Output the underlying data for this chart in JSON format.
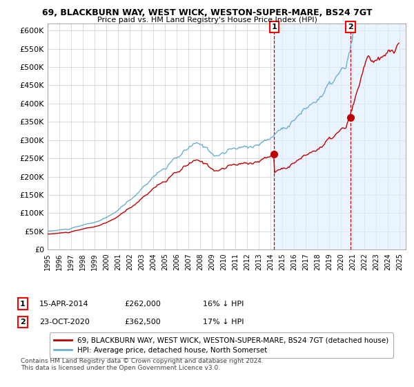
{
  "title1": "69, BLACKBURN WAY, WEST WICK, WESTON-SUPER-MARE, BS24 7GT",
  "title2": "Price paid vs. HM Land Registry's House Price Index (HPI)",
  "yticks": [
    0,
    50000,
    100000,
    150000,
    200000,
    250000,
    300000,
    350000,
    400000,
    450000,
    500000,
    550000,
    600000
  ],
  "ylim": [
    0,
    620000
  ],
  "legend_line1": "69, BLACKBURN WAY, WEST WICK, WESTON-SUPER-MARE, BS24 7GT (detached house)",
  "legend_line2": "HPI: Average price, detached house, North Somerset",
  "footnote": "Contains HM Land Registry data © Crown copyright and database right 2024.\nThis data is licensed under the Open Government Licence v3.0.",
  "point1_date": "15-APR-2014",
  "point1_price": "£262,000",
  "point1_hpi": "16% ↓ HPI",
  "point2_date": "23-OCT-2020",
  "point2_price": "£362,500",
  "point2_hpi": "17% ↓ HPI",
  "hpi_color": "#6baed6",
  "price_color": "#c00000",
  "background_color": "#ffffff",
  "grid_color": "#cccccc",
  "shade_color": "#ddeeff",
  "xlim_start": 1995.0,
  "xlim_end": 2025.5,
  "price1": 262000,
  "price2": 362500,
  "x1_year": 2014.29,
  "x2_year": 2020.79
}
